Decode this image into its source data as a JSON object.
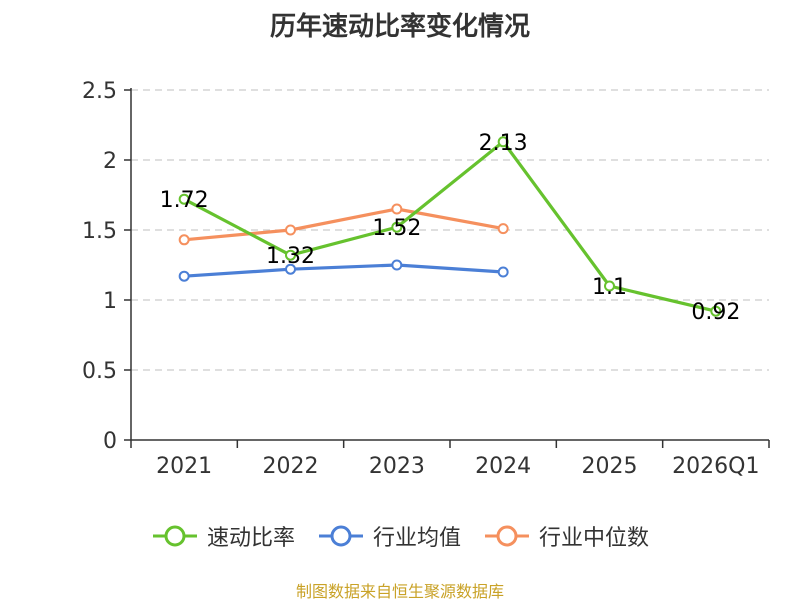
{
  "chart_data": {
    "type": "line",
    "title": "历年速动比率变化情况",
    "categories": [
      "2021",
      "2022",
      "2023",
      "2024",
      "2025",
      "2026Q1"
    ],
    "ylim": [
      0,
      2.5
    ],
    "yticks": [
      "0",
      "0.5",
      "1",
      "1.5",
      "2",
      "2.5"
    ],
    "ytick_values": [
      0,
      0.5,
      1,
      1.5,
      2,
      2.5
    ],
    "grid": true,
    "legend_position": "bottom",
    "series": [
      {
        "name": "速动比率",
        "color": "#66c22e",
        "labeled": true,
        "values": [
          1.72,
          1.32,
          1.52,
          2.13,
          1.1,
          0.92
        ],
        "labels": [
          "1.72",
          "1.32",
          "1.52",
          "2.13",
          "1.1",
          "0.92"
        ]
      },
      {
        "name": "行业均值",
        "color": "#4b7fd6",
        "labeled": false,
        "values": [
          1.17,
          1.22,
          1.25,
          1.2,
          null,
          null
        ]
      },
      {
        "name": "行业中位数",
        "color": "#f5905e",
        "labeled": false,
        "values": [
          1.43,
          1.5,
          1.65,
          1.51,
          null,
          null
        ]
      }
    ]
  },
  "footer": {
    "source": "制图数据来自恒生聚源数据库"
  }
}
